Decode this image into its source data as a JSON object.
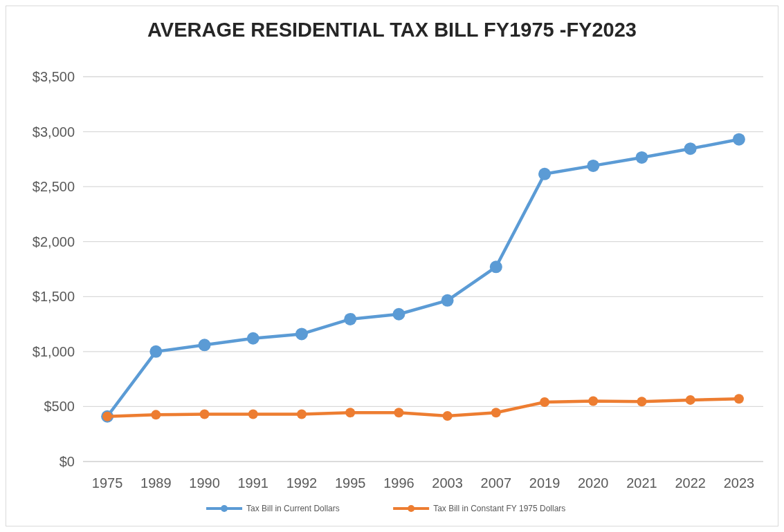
{
  "chart_data": {
    "type": "line",
    "title": "AVERAGE RESIDENTIAL TAX BILL FY1975 -FY2023",
    "categories": [
      "1975",
      "1989",
      "1990",
      "1991",
      "1992",
      "1995",
      "1996",
      "2003",
      "2007",
      "2019",
      "2020",
      "2021",
      "2022",
      "2023"
    ],
    "series": [
      {
        "name": "Tax Bill in Current Dollars",
        "color": "#5b9bd5",
        "values": [
          410,
          1000,
          1060,
          1120,
          1160,
          1295,
          1340,
          1465,
          1770,
          2615,
          2690,
          2765,
          2845,
          2930
        ]
      },
      {
        "name": "Tax Bill in Constant FY 1975 Dollars",
        "color": "#ed7d31",
        "values": [
          410,
          425,
          430,
          430,
          430,
          445,
          445,
          415,
          445,
          540,
          550,
          545,
          560,
          570
        ]
      }
    ],
    "ylim": [
      0,
      3500
    ],
    "yticks": [
      {
        "value": 0,
        "label": "$0"
      },
      {
        "value": 500,
        "label": "$500"
      },
      {
        "value": 1000,
        "label": "$1,000"
      },
      {
        "value": 1500,
        "label": "$1,500"
      },
      {
        "value": 2000,
        "label": "$2,000"
      },
      {
        "value": 2500,
        "label": "$2,500"
      },
      {
        "value": 3000,
        "label": "$3,000"
      },
      {
        "value": 3500,
        "label": "$3,500"
      }
    ],
    "grid": "y",
    "legend": "bottom",
    "marker": "circle",
    "line_style": "solid"
  }
}
